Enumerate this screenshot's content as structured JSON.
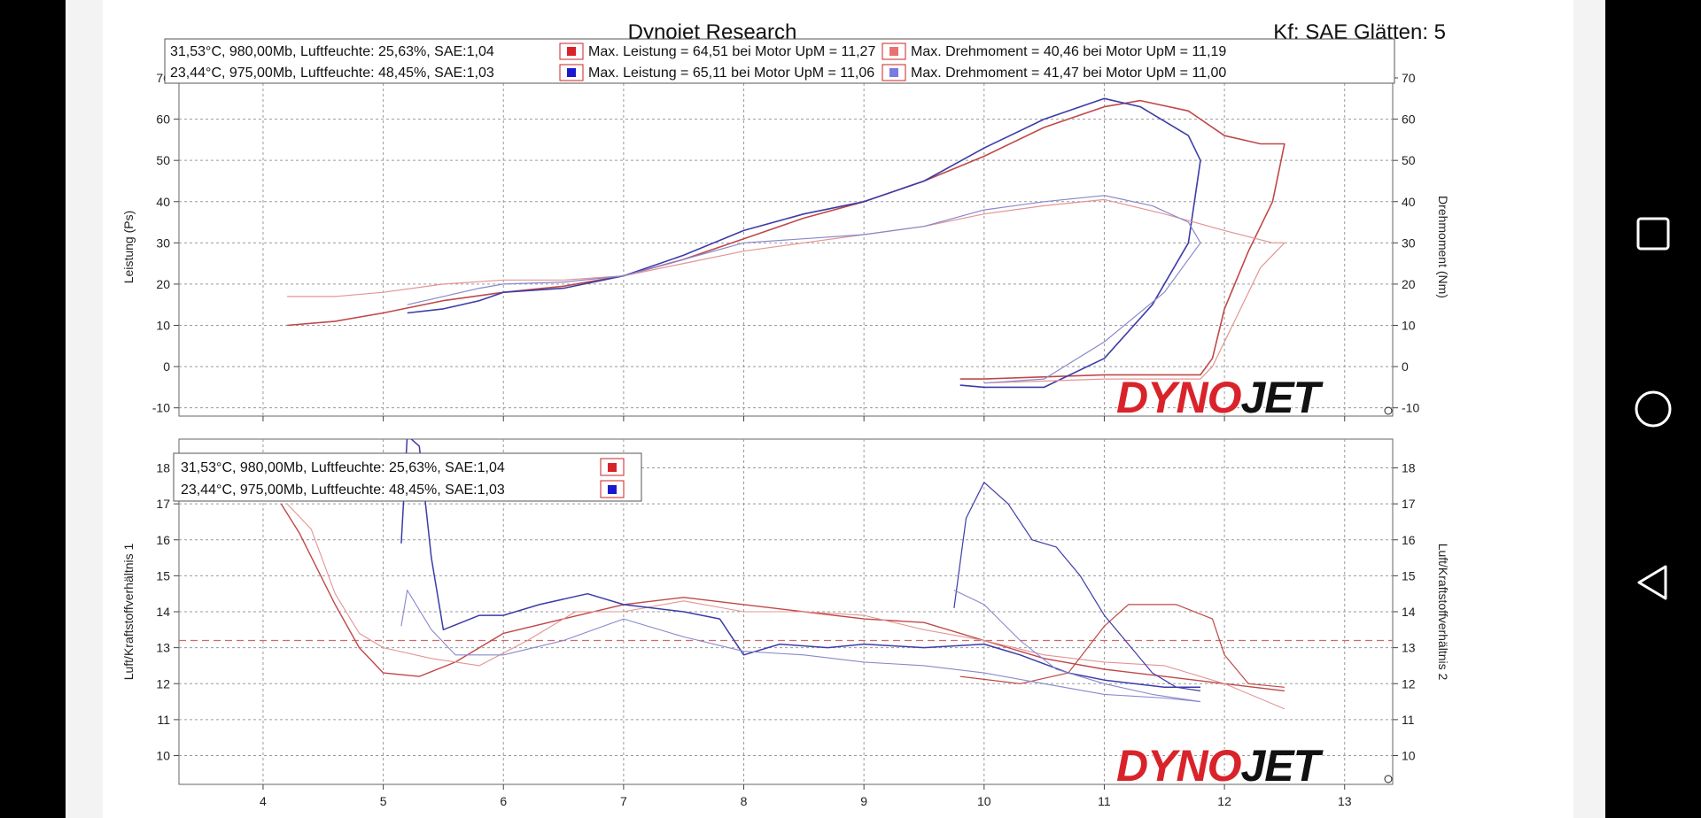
{
  "header": {
    "title": "Dynojet Research",
    "right": "Kf: SAE Glätten: 5"
  },
  "logo_text": "DYNOJET",
  "nav": {
    "square": "square-icon",
    "circle": "circle-icon",
    "back": "triangle-back-icon"
  },
  "chart_data": [
    {
      "type": "line",
      "x_ticks": [
        "4",
        "5",
        "6",
        "7",
        "8",
        "9",
        "10",
        "11",
        "12",
        "13"
      ],
      "xlim": [
        3.3,
        13.4
      ],
      "ylabel": "Leistung (Ps)",
      "y2label": "Drehmoment (Nm)",
      "ylim": [
        -12,
        70
      ],
      "y_ticks": [
        "-10",
        "0",
        "10",
        "20",
        "30",
        "40",
        "50",
        "60",
        "70"
      ],
      "grid": true,
      "legend": {
        "run1_conditions": "31,53°C, 980,00Mb, Luftfeuchte: 25,63%, SAE:1,04",
        "run1_power": "Max. Leistung = 64,51 bei Motor UpM = 11,27",
        "run1_torque": "Max. Drehmoment = 40,46 bei Motor UpM = 11,19",
        "run2_conditions": "23,44°C, 975,00Mb, Luftfeuchte: 48,45%, SAE:1,03",
        "run2_power": "Max. Leistung = 65,11 bei Motor UpM = 11,06",
        "run2_torque": "Max. Drehmoment = 41,47 bei Motor UpM = 11,00"
      },
      "series": [
        {
          "color": "#c04848",
          "width": 1.6,
          "points": [
            [
              4.2,
              10
            ],
            [
              4.6,
              11
            ],
            [
              5.0,
              13
            ],
            [
              5.5,
              16
            ],
            [
              6.0,
              18
            ],
            [
              6.5,
              19.5
            ],
            [
              7.0,
              22
            ],
            [
              7.5,
              26
            ],
            [
              8.0,
              31
            ],
            [
              8.5,
              36
            ],
            [
              9.0,
              40
            ],
            [
              9.5,
              45
            ],
            [
              10.0,
              51
            ],
            [
              10.5,
              58
            ],
            [
              11.0,
              63
            ],
            [
              11.3,
              64.5
            ],
            [
              11.7,
              62
            ],
            [
              12.0,
              56
            ],
            [
              12.3,
              54
            ],
            [
              12.5,
              54
            ],
            [
              12.4,
              40
            ],
            [
              12.2,
              28
            ],
            [
              12.0,
              14
            ],
            [
              11.9,
              2
            ],
            [
              11.8,
              -2
            ],
            [
              11.0,
              -2
            ],
            [
              10.0,
              -3
            ],
            [
              9.8,
              -3
            ]
          ]
        },
        {
          "color": "#3c3ca8",
          "width": 1.6,
          "points": [
            [
              5.2,
              13
            ],
            [
              5.5,
              14
            ],
            [
              5.8,
              16
            ],
            [
              6.0,
              18
            ],
            [
              6.5,
              19
            ],
            [
              7.0,
              22
            ],
            [
              7.5,
              27
            ],
            [
              8.0,
              33
            ],
            [
              8.5,
              37
            ],
            [
              9.0,
              40
            ],
            [
              9.5,
              45
            ],
            [
              10.0,
              53
            ],
            [
              10.5,
              60
            ],
            [
              11.0,
              65
            ],
            [
              11.3,
              63
            ],
            [
              11.7,
              56
            ],
            [
              11.8,
              50
            ],
            [
              11.7,
              30
            ],
            [
              11.4,
              15
            ],
            [
              11.0,
              2
            ],
            [
              10.5,
              -5
            ],
            [
              10.0,
              -5
            ],
            [
              9.8,
              -4.5
            ]
          ]
        },
        {
          "color": "#e49494",
          "width": 1.2,
          "points": [
            [
              4.2,
              17
            ],
            [
              4.6,
              17
            ],
            [
              5.0,
              18
            ],
            [
              5.5,
              20
            ],
            [
              6.0,
              21
            ],
            [
              6.5,
              21
            ],
            [
              7.0,
              22
            ],
            [
              7.5,
              25
            ],
            [
              8.0,
              28
            ],
            [
              8.5,
              30
            ],
            [
              9.0,
              32
            ],
            [
              9.5,
              34
            ],
            [
              10.0,
              37
            ],
            [
              10.5,
              39
            ],
            [
              11.0,
              40.5
            ],
            [
              11.5,
              37
            ],
            [
              12.0,
              33
            ],
            [
              12.4,
              30
            ],
            [
              12.5,
              30
            ],
            [
              12.3,
              24
            ],
            [
              12.1,
              12
            ],
            [
              11.9,
              0
            ],
            [
              11.8,
              -3
            ],
            [
              11.0,
              -3
            ],
            [
              10.0,
              -4
            ]
          ]
        },
        {
          "color": "#8888cc",
          "width": 1.2,
          "points": [
            [
              5.2,
              15
            ],
            [
              5.5,
              17
            ],
            [
              5.8,
              19
            ],
            [
              6.0,
              20
            ],
            [
              6.5,
              20.5
            ],
            [
              7.0,
              22
            ],
            [
              7.5,
              26
            ],
            [
              8.0,
              30
            ],
            [
              8.5,
              31
            ],
            [
              9.0,
              32
            ],
            [
              9.5,
              34
            ],
            [
              10.0,
              38
            ],
            [
              10.5,
              40
            ],
            [
              11.0,
              41.5
            ],
            [
              11.4,
              39
            ],
            [
              11.7,
              35
            ],
            [
              11.8,
              30
            ],
            [
              11.5,
              18
            ],
            [
              11.0,
              6
            ],
            [
              10.5,
              -3
            ],
            [
              10.0,
              -4
            ]
          ]
        }
      ]
    },
    {
      "type": "line",
      "x_ticks": [
        "4",
        "5",
        "6",
        "7",
        "8",
        "9",
        "10",
        "11",
        "12",
        "13"
      ],
      "xlim": [
        3.3,
        13.4
      ],
      "ylabel": "Luft/Kraftstoffverhältnis 1",
      "y2label": "Luft/Kraftstoffverhältnis 2",
      "ylim": [
        9.2,
        18.8
      ],
      "y_ticks": [
        "10",
        "11",
        "12",
        "13",
        "14",
        "15",
        "16",
        "17",
        "18"
      ],
      "grid": true,
      "reference_line": 13.2,
      "legend": {
        "run1_conditions": "31,53°C, 980,00Mb, Luftfeuchte: 25,63%, SAE:1,04",
        "run2_conditions": "23,44°C, 975,00Mb, Luftfeuchte: 48,45%, SAE:1,03"
      },
      "series": [
        {
          "color": "#c04848",
          "width": 1.4,
          "points": [
            [
              4.15,
              17.0
            ],
            [
              4.3,
              16.2
            ],
            [
              4.6,
              14.2
            ],
            [
              4.8,
              13.0
            ],
            [
              5.0,
              12.3
            ],
            [
              5.3,
              12.2
            ],
            [
              5.6,
              12.6
            ],
            [
              6.0,
              13.4
            ],
            [
              6.5,
              13.8
            ],
            [
              7.0,
              14.2
            ],
            [
              7.5,
              14.4
            ],
            [
              8.0,
              14.2
            ],
            [
              8.5,
              14.0
            ],
            [
              9.0,
              13.8
            ],
            [
              9.5,
              13.7
            ],
            [
              10.0,
              13.2
            ],
            [
              10.5,
              12.7
            ],
            [
              11.0,
              12.4
            ],
            [
              11.5,
              12.2
            ],
            [
              12.0,
              12.0
            ],
            [
              12.5,
              11.8
            ]
          ]
        },
        {
          "color": "#e49494",
          "width": 1.1,
          "points": [
            [
              4.2,
              17.0
            ],
            [
              4.4,
              16.3
            ],
            [
              4.6,
              14.5
            ],
            [
              4.8,
              13.4
            ],
            [
              5.0,
              13.0
            ],
            [
              5.4,
              12.7
            ],
            [
              5.8,
              12.5
            ],
            [
              6.2,
              13.2
            ],
            [
              6.6,
              14.0
            ],
            [
              7.0,
              14.0
            ],
            [
              7.5,
              14.3
            ],
            [
              8.0,
              14.0
            ],
            [
              8.5,
              14.0
            ],
            [
              9.0,
              13.9
            ],
            [
              9.5,
              13.5
            ],
            [
              10.0,
              13.2
            ],
            [
              10.5,
              12.8
            ],
            [
              11.0,
              12.6
            ],
            [
              11.5,
              12.5
            ],
            [
              12.0,
              12.0
            ],
            [
              12.5,
              11.3
            ]
          ]
        },
        {
          "color": "#c04848",
          "width": 1.2,
          "points": [
            [
              9.8,
              12.2
            ],
            [
              10.3,
              12.0
            ],
            [
              10.7,
              12.3
            ],
            [
              11.0,
              13.6
            ],
            [
              11.2,
              14.2
            ],
            [
              11.6,
              14.2
            ],
            [
              11.9,
              13.8
            ],
            [
              12.0,
              12.8
            ],
            [
              12.2,
              12.0
            ],
            [
              12.5,
              11.9
            ]
          ]
        },
        {
          "color": "#3c3ca8",
          "width": 1.5,
          "points": [
            [
              5.15,
              15.9
            ],
            [
              5.2,
              18.9
            ],
            [
              5.3,
              18.6
            ],
            [
              5.4,
              15.5
            ],
            [
              5.5,
              13.5
            ],
            [
              5.8,
              13.9
            ],
            [
              6.0,
              13.9
            ],
            [
              6.3,
              14.2
            ],
            [
              6.7,
              14.5
            ],
            [
              7.0,
              14.2
            ],
            [
              7.5,
              14.0
            ],
            [
              7.8,
              13.8
            ],
            [
              8.0,
              12.8
            ],
            [
              8.3,
              13.1
            ],
            [
              8.7,
              13.0
            ],
            [
              9.0,
              13.1
            ],
            [
              9.5,
              13.0
            ],
            [
              10.0,
              13.1
            ],
            [
              10.3,
              12.8
            ],
            [
              10.7,
              12.3
            ],
            [
              11.0,
              12.1
            ],
            [
              11.5,
              11.9
            ],
            [
              11.8,
              11.9
            ]
          ]
        },
        {
          "color": "#3c3ca8",
          "width": 1.2,
          "points": [
            [
              9.75,
              14.1
            ],
            [
              9.85,
              16.6
            ],
            [
              10.0,
              17.6
            ],
            [
              10.2,
              17.0
            ],
            [
              10.4,
              16.0
            ],
            [
              10.6,
              15.8
            ],
            [
              10.8,
              15.0
            ],
            [
              11.0,
              13.9
            ],
            [
              11.2,
              13.1
            ],
            [
              11.4,
              12.3
            ],
            [
              11.6,
              11.9
            ],
            [
              11.8,
              11.8
            ]
          ]
        },
        {
          "color": "#8888cc",
          "width": 1.1,
          "points": [
            [
              5.15,
              13.6
            ],
            [
              5.2,
              14.6
            ],
            [
              5.4,
              13.5
            ],
            [
              5.6,
              12.8
            ],
            [
              6.0,
              12.8
            ],
            [
              6.5,
              13.2
            ],
            [
              7.0,
              13.8
            ],
            [
              7.5,
              13.3
            ],
            [
              8.0,
              12.9
            ],
            [
              8.5,
              12.8
            ],
            [
              9.0,
              12.6
            ],
            [
              9.5,
              12.5
            ],
            [
              10.0,
              12.3
            ],
            [
              10.5,
              12.0
            ],
            [
              11.0,
              11.7
            ],
            [
              11.5,
              11.6
            ],
            [
              11.8,
              11.5
            ]
          ]
        },
        {
          "color": "#8888cc",
          "width": 1.1,
          "points": [
            [
              9.75,
              14.6
            ],
            [
              10.0,
              14.2
            ],
            [
              10.3,
              13.2
            ],
            [
              10.6,
              12.4
            ],
            [
              11.0,
              12.0
            ],
            [
              11.4,
              11.7
            ],
            [
              11.8,
              11.5
            ]
          ]
        }
      ]
    }
  ]
}
